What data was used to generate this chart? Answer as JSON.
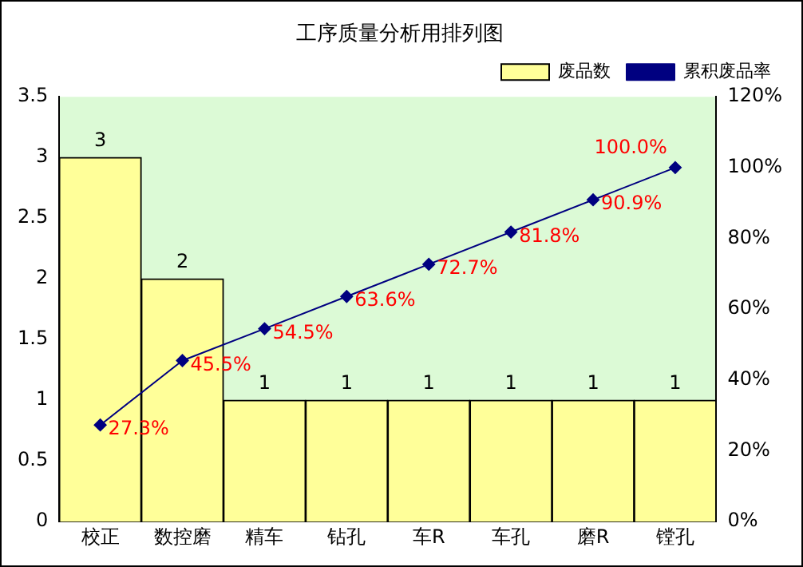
{
  "chart_data": {
    "type": "bar",
    "title": "工序质量分析用排列图",
    "categories": [
      "校正",
      "数控磨",
      "精车",
      "钻孔",
      "车R",
      "车孔",
      "磨R",
      "镗孔"
    ],
    "series": [
      {
        "name": "废品数",
        "color": "#ffff99",
        "values": [
          3,
          2,
          1,
          1,
          1,
          1,
          1,
          1
        ],
        "value_labels": [
          "3",
          "2",
          "1",
          "1",
          "1",
          "1",
          "1",
          "1"
        ]
      },
      {
        "name": "累积废品率",
        "type": "line",
        "axis": "y2",
        "color": "#000080",
        "marker": "diamond",
        "values": [
          27.3,
          45.5,
          54.5,
          63.6,
          72.7,
          81.8,
          90.9,
          100.0
        ],
        "value_labels": [
          "27.3%",
          "45.5%",
          "54.5%",
          "63.6%",
          "72.7%",
          "81.8%",
          "90.9%",
          "100.0%"
        ]
      }
    ],
    "ylim": [
      0,
      3.5
    ],
    "yticks": [
      0,
      0.5,
      1,
      1.5,
      2,
      2.5,
      3,
      3.5
    ],
    "y2lim": [
      0,
      120
    ],
    "y2ticks": [
      {
        "value": 0,
        "label": "0%"
      },
      {
        "value": 20,
        "label": "20%"
      },
      {
        "value": 40,
        "label": "40%"
      },
      {
        "value": 60,
        "label": "60%"
      },
      {
        "value": 80,
        "label": "80%"
      },
      {
        "value": 100,
        "label": "100%"
      },
      {
        "value": 120,
        "label": "120%"
      }
    ],
    "legend": "top right"
  }
}
